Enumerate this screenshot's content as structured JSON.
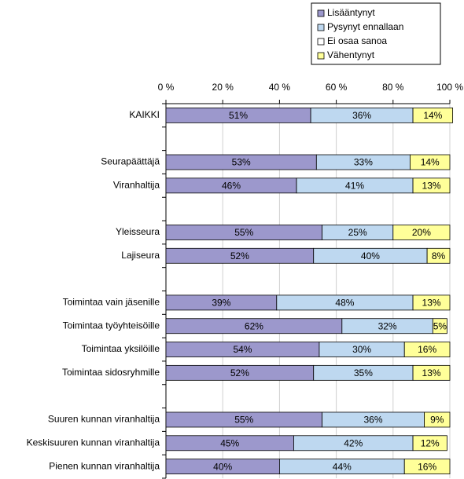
{
  "chart_data": {
    "type": "stacked_barh",
    "categories": [
      "KAIKKI",
      null,
      "Seurapäättäjä",
      "Viranhaltija",
      null,
      "Yleisseura",
      "Lajiseura",
      null,
      "Toimintaa vain jäsenille",
      "Toimintaa työyhteisöille",
      "Toimintaa yksilöille",
      "Toimintaa sidosryhmille",
      null,
      "Suuren kunnan viranhaltija",
      "Keskisuuren kunnan viranhaltija",
      "Pienen kunnan viranhaltija"
    ],
    "series": [
      {
        "name": "Lisääntynyt",
        "color": "#9c98cc",
        "values": [
          51,
          null,
          53,
          46,
          null,
          55,
          52,
          null,
          39,
          62,
          54,
          52,
          null,
          55,
          45,
          40
        ],
        "value_labels": [
          "51%",
          null,
          "53%",
          "46%",
          null,
          "55%",
          "52%",
          null,
          "39%",
          "62%",
          "54%",
          "52%",
          null,
          "55%",
          "45%",
          "40%"
        ]
      },
      {
        "name": "Pysynyt ennallaan",
        "color": "#bed8f0",
        "values": [
          36,
          null,
          33,
          41,
          null,
          25,
          40,
          null,
          48,
          32,
          30,
          35,
          null,
          36,
          42,
          44
        ],
        "value_labels": [
          "36%",
          null,
          "33%",
          "41%",
          null,
          "25%",
          "40%",
          null,
          "48%",
          "32%",
          "30%",
          "35%",
          null,
          "36%",
          "42%",
          "44%"
        ]
      },
      {
        "name": "Ei osaa sanoa",
        "color": "#ffffff",
        "values": [
          0,
          null,
          0,
          0,
          null,
          0,
          0,
          null,
          0,
          0,
          0,
          0,
          null,
          0,
          0,
          0
        ]
      },
      {
        "name": "Vähentynyt",
        "color": "#ffff99",
        "values": [
          14,
          null,
          14,
          13,
          null,
          20,
          8,
          null,
          13,
          5,
          16,
          13,
          null,
          9,
          12,
          16
        ],
        "value_labels": [
          "14%",
          null,
          "14%",
          "13%",
          null,
          "20%",
          "8%",
          null,
          "13%",
          "5%",
          "16%",
          "13%",
          null,
          "9%",
          "12%",
          "16%"
        ]
      }
    ],
    "xlim": [
      0,
      100
    ],
    "xticks": [
      {
        "value": 0,
        "label": "0 %"
      },
      {
        "value": 20,
        "label": "20 %"
      },
      {
        "value": 40,
        "label": "40 %"
      },
      {
        "value": 60,
        "label": "60 %"
      },
      {
        "value": 80,
        "label": "80 %"
      },
      {
        "value": 100,
        "label": "100 %"
      }
    ],
    "grid": true
  }
}
